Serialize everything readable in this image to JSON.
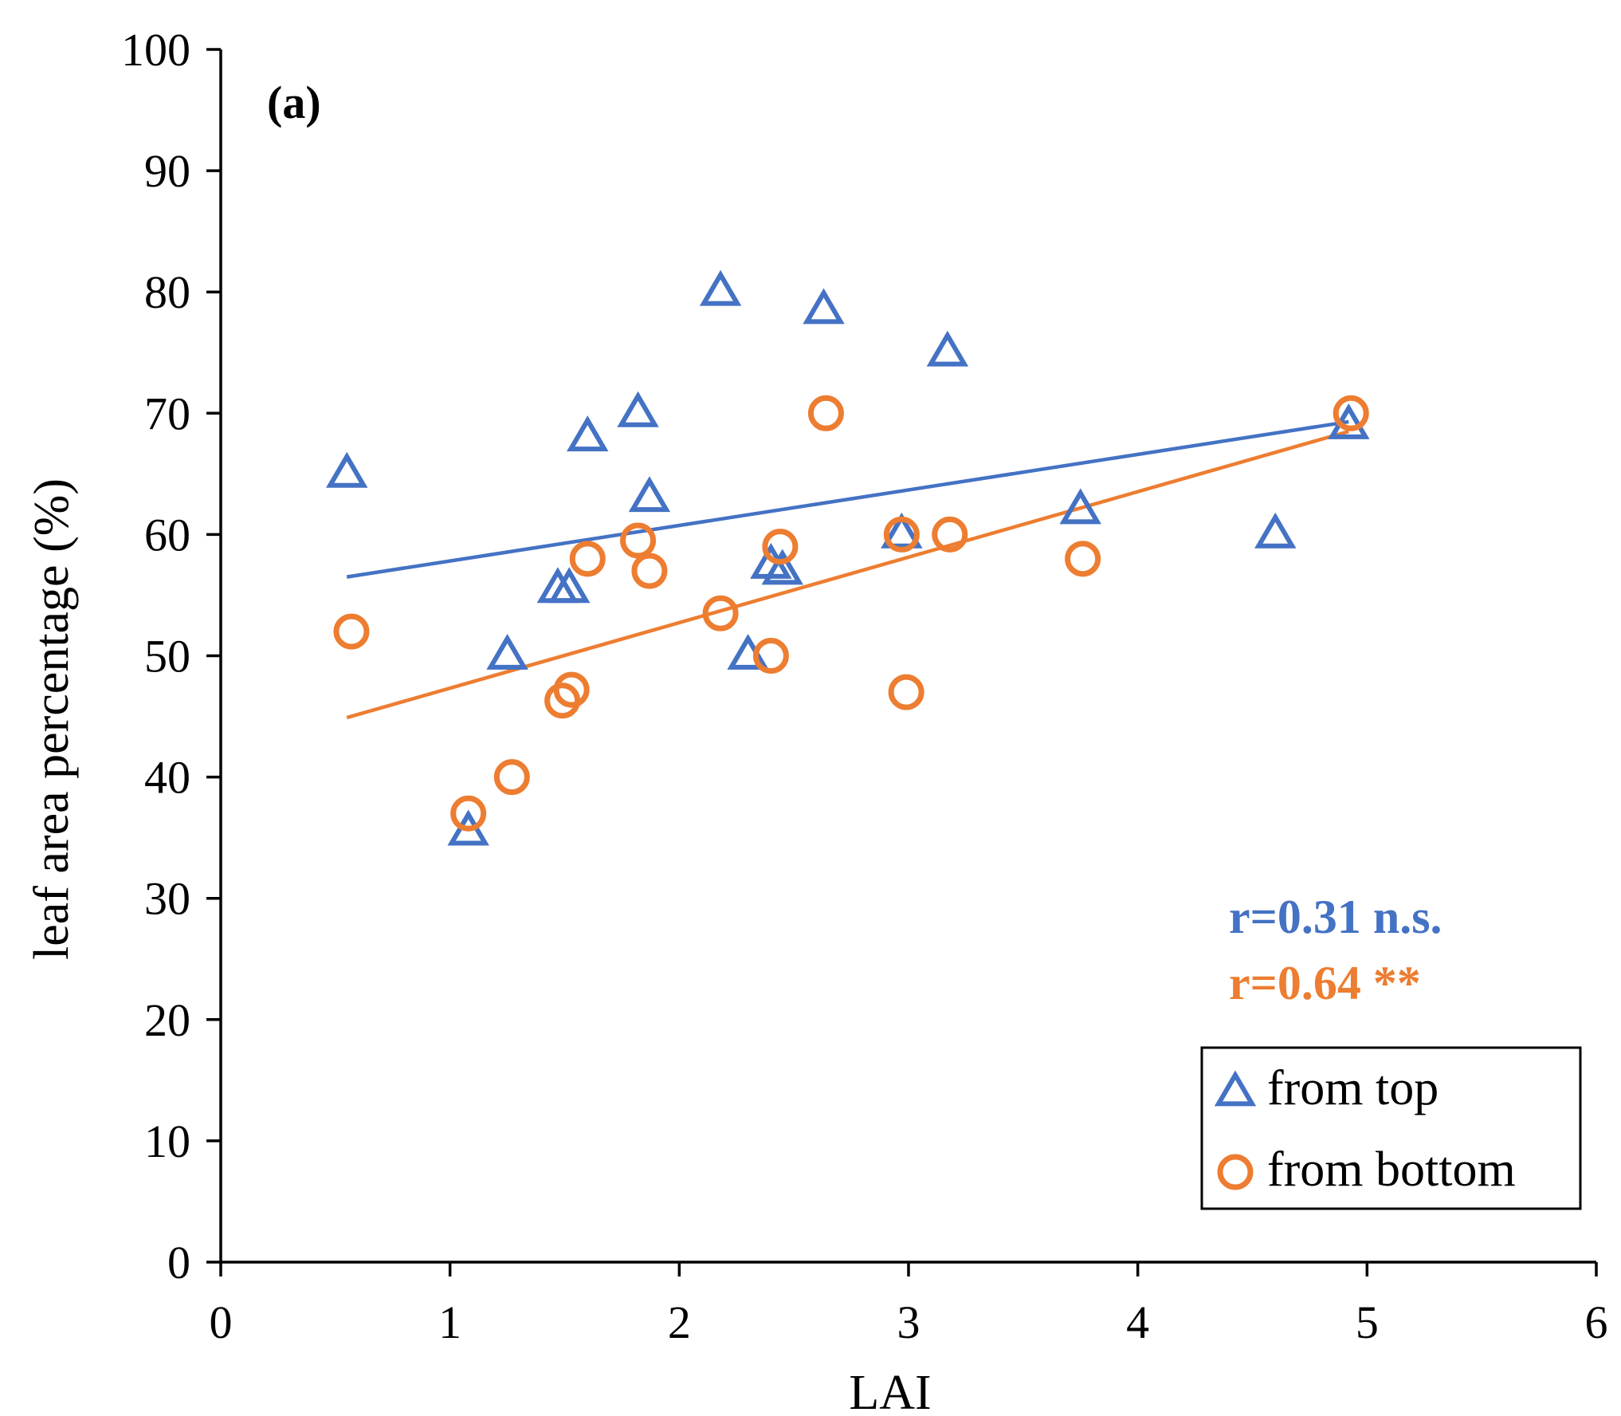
{
  "chart_data": {
    "type": "scatter",
    "panel_label": "(a)",
    "xlabel": "LAI",
    "ylabel": "leaf area percentage (%)",
    "xlim": [
      0,
      6
    ],
    "ylim": [
      0,
      100
    ],
    "xticks": [
      "0",
      "1",
      "2",
      "3",
      "4",
      "5",
      "6"
    ],
    "yticks": [
      "0",
      "10",
      "20",
      "30",
      "40",
      "50",
      "60",
      "70",
      "80",
      "90",
      "100"
    ],
    "series": [
      {
        "name": "from top",
        "marker": "triangle",
        "color": "#4472C4",
        "points": [
          {
            "x": 0.55,
            "y": 65
          },
          {
            "x": 1.08,
            "y": 35.5
          },
          {
            "x": 1.25,
            "y": 50
          },
          {
            "x": 1.47,
            "y": 55.5
          },
          {
            "x": 1.52,
            "y": 55.5
          },
          {
            "x": 1.6,
            "y": 68
          },
          {
            "x": 1.82,
            "y": 70
          },
          {
            "x": 1.87,
            "y": 63
          },
          {
            "x": 2.18,
            "y": 80
          },
          {
            "x": 2.3,
            "y": 50
          },
          {
            "x": 2.4,
            "y": 57.5
          },
          {
            "x": 2.45,
            "y": 57
          },
          {
            "x": 2.63,
            "y": 78.5
          },
          {
            "x": 2.97,
            "y": 60
          },
          {
            "x": 3.17,
            "y": 75
          },
          {
            "x": 3.75,
            "y": 62
          },
          {
            "x": 4.6,
            "y": 60
          },
          {
            "x": 4.92,
            "y": 69
          }
        ],
        "trendline": {
          "x": [
            0.55,
            4.92
          ],
          "y": [
            56.5,
            69.3
          ]
        },
        "stat_label": "r=0.31  n.s."
      },
      {
        "name": "from bottom",
        "marker": "circle",
        "color": "#ED7D31",
        "points": [
          {
            "x": 0.57,
            "y": 52
          },
          {
            "x": 1.08,
            "y": 37
          },
          {
            "x": 1.27,
            "y": 40
          },
          {
            "x": 1.49,
            "y": 46.3
          },
          {
            "x": 1.53,
            "y": 47.2
          },
          {
            "x": 1.6,
            "y": 58
          },
          {
            "x": 1.82,
            "y": 59.5
          },
          {
            "x": 1.87,
            "y": 57
          },
          {
            "x": 2.18,
            "y": 53.5
          },
          {
            "x": 2.4,
            "y": 50
          },
          {
            "x": 2.44,
            "y": 59
          },
          {
            "x": 2.64,
            "y": 70
          },
          {
            "x": 2.97,
            "y": 60
          },
          {
            "x": 2.99,
            "y": 47
          },
          {
            "x": 3.18,
            "y": 60
          },
          {
            "x": 3.76,
            "y": 58
          },
          {
            "x": 4.93,
            "y": 70
          }
        ],
        "trendline": {
          "x": [
            0.55,
            4.92
          ],
          "y": [
            44.9,
            68.5
          ]
        },
        "stat_label": "r=0.64  **"
      }
    ],
    "legend": {
      "position": "bottom-right",
      "entries": [
        "from top",
        "from bottom"
      ]
    }
  }
}
